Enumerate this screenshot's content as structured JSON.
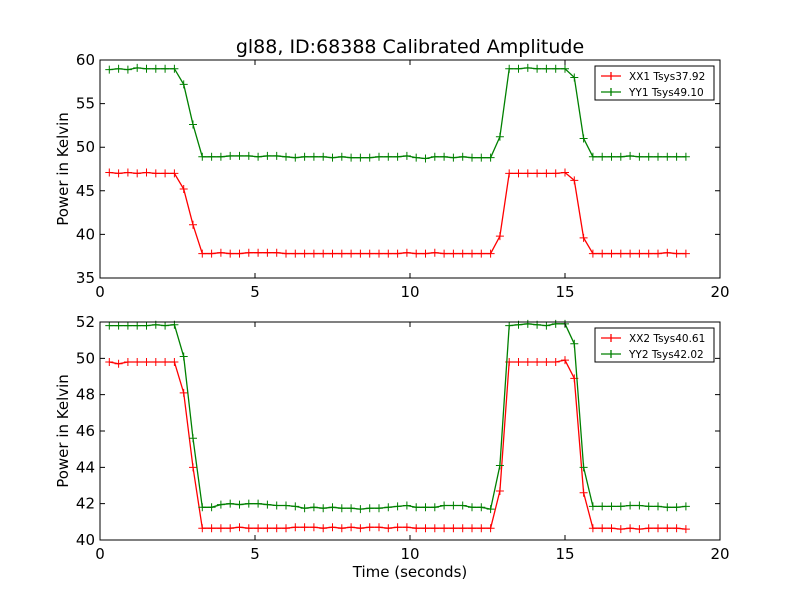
{
  "title": "gl88, ID:68388 Calibrated Amplitude",
  "chart_data": [
    {
      "type": "line",
      "title": "gl88, ID:68388 Calibrated Amplitude",
      "xlabel": "",
      "ylabel": "Power in Kelvin",
      "xlim": [
        0,
        20
      ],
      "ylim": [
        35,
        60
      ],
      "xticks": [
        0,
        5,
        10,
        15,
        20
      ],
      "yticks": [
        35,
        40,
        45,
        50,
        55,
        60
      ],
      "legend_position": "top-right",
      "x_start": 0.3,
      "x_step": 0.3,
      "series": [
        {
          "name": "XX1 Tsys37.92",
          "color": "#ff0000",
          "values": [
            47.1,
            47.0,
            47.1,
            47.0,
            47.1,
            47.0,
            47.0,
            47.0,
            45.2,
            41.1,
            37.8,
            37.8,
            37.9,
            37.8,
            37.8,
            37.9,
            37.9,
            37.9,
            37.9,
            37.8,
            37.8,
            37.8,
            37.8,
            37.8,
            37.8,
            37.8,
            37.8,
            37.8,
            37.8,
            37.8,
            37.8,
            37.8,
            37.9,
            37.8,
            37.8,
            37.9,
            37.8,
            37.8,
            37.8,
            37.8,
            37.8,
            37.8,
            39.8,
            47.0,
            47.0,
            47.0,
            47.0,
            47.0,
            47.0,
            47.1,
            46.2,
            39.6,
            37.8,
            37.8,
            37.8,
            37.8,
            37.8,
            37.8,
            37.8,
            37.8,
            37.9,
            37.8,
            37.8
          ]
        },
        {
          "name": "YY1 Tsys49.10",
          "color": "#008000",
          "values": [
            58.9,
            59.0,
            58.9,
            59.1,
            59.0,
            59.0,
            59.0,
            59.0,
            57.2,
            52.6,
            48.9,
            48.9,
            48.9,
            49.0,
            49.0,
            49.0,
            48.9,
            49.0,
            49.0,
            48.9,
            48.8,
            48.9,
            48.9,
            48.9,
            48.8,
            48.9,
            48.8,
            48.8,
            48.8,
            48.9,
            48.9,
            48.9,
            49.0,
            48.8,
            48.7,
            48.9,
            48.9,
            48.8,
            48.9,
            48.8,
            48.8,
            48.8,
            51.2,
            59.0,
            59.0,
            59.1,
            59.0,
            59.0,
            59.0,
            59.0,
            58.0,
            51.0,
            48.9,
            48.9,
            48.9,
            48.9,
            49.0,
            48.9,
            48.9,
            48.9,
            48.9,
            48.9,
            48.9
          ]
        }
      ]
    },
    {
      "type": "line",
      "title": "",
      "xlabel": "Time (seconds)",
      "ylabel": "Power in Kelvin",
      "xlim": [
        0,
        20
      ],
      "ylim": [
        40,
        52
      ],
      "xticks": [
        0,
        5,
        10,
        15,
        20
      ],
      "yticks": [
        40,
        42,
        44,
        46,
        48,
        50,
        52
      ],
      "legend_position": "top-right",
      "x_start": 0.3,
      "x_step": 0.3,
      "series": [
        {
          "name": "XX2 Tsys40.61",
          "color": "#ff0000",
          "values": [
            49.8,
            49.7,
            49.8,
            49.8,
            49.8,
            49.8,
            49.8,
            49.8,
            48.1,
            44.0,
            40.65,
            40.65,
            40.65,
            40.65,
            40.7,
            40.65,
            40.65,
            40.65,
            40.65,
            40.65,
            40.7,
            40.7,
            40.7,
            40.65,
            40.7,
            40.65,
            40.7,
            40.65,
            40.7,
            40.7,
            40.65,
            40.7,
            40.7,
            40.65,
            40.65,
            40.65,
            40.65,
            40.65,
            40.65,
            40.65,
            40.65,
            40.65,
            42.7,
            49.8,
            49.8,
            49.8,
            49.8,
            49.8,
            49.8,
            49.9,
            48.9,
            42.6,
            40.65,
            40.65,
            40.65,
            40.6,
            40.65,
            40.6,
            40.65,
            40.65,
            40.65,
            40.65,
            40.6
          ]
        },
        {
          "name": "YY2 Tsys42.02",
          "color": "#008000",
          "values": [
            51.8,
            51.8,
            51.8,
            51.8,
            51.8,
            51.85,
            51.8,
            51.85,
            50.1,
            45.6,
            41.8,
            41.8,
            41.95,
            42.0,
            41.95,
            42.0,
            42.0,
            41.95,
            41.9,
            41.9,
            41.85,
            41.75,
            41.8,
            41.75,
            41.8,
            41.75,
            41.75,
            41.7,
            41.75,
            41.75,
            41.8,
            41.85,
            41.9,
            41.8,
            41.8,
            41.8,
            41.9,
            41.9,
            41.9,
            41.8,
            41.8,
            41.7,
            44.1,
            51.8,
            51.85,
            51.9,
            51.85,
            51.8,
            51.9,
            51.9,
            50.8,
            44.0,
            41.85,
            41.85,
            41.85,
            41.85,
            41.9,
            41.9,
            41.85,
            41.85,
            41.8,
            41.8,
            41.85
          ]
        }
      ]
    }
  ]
}
